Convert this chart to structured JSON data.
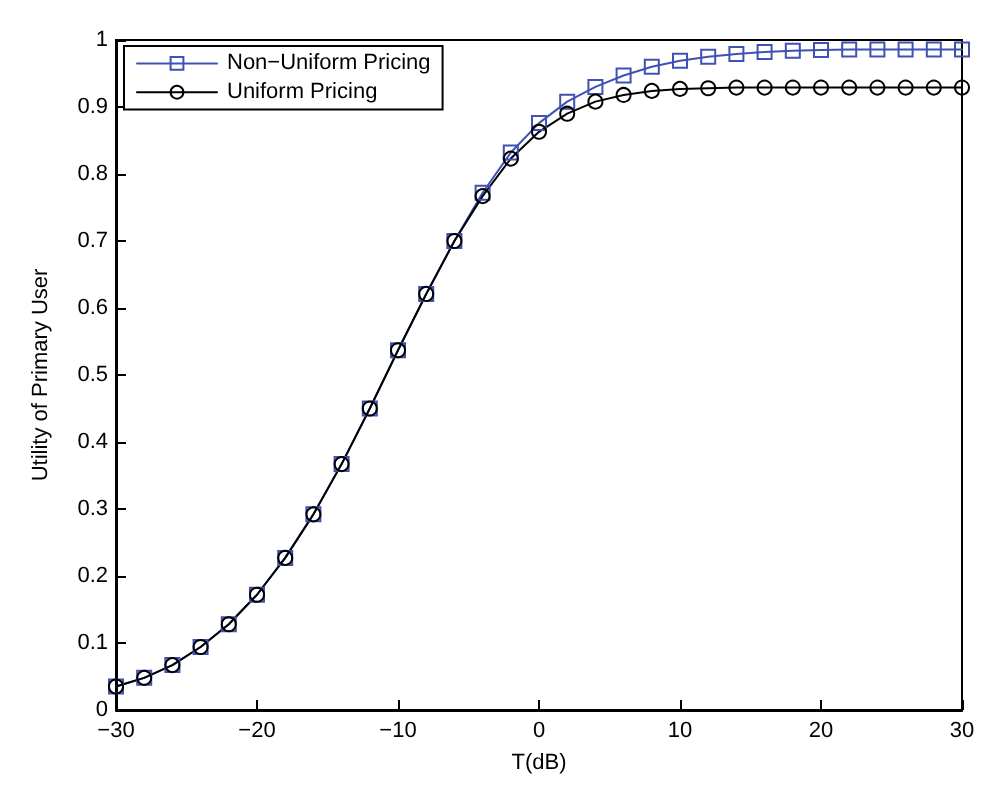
{
  "chart_data": {
    "type": "line",
    "xlabel": "T(dB)",
    "ylabel": "Utility of Primary User",
    "x": [
      -30,
      -28,
      -26,
      -24,
      -22,
      -20,
      -18,
      -16,
      -14,
      -12,
      -10,
      -8,
      -6,
      -4,
      -2,
      0,
      2,
      4,
      6,
      8,
      10,
      12,
      14,
      16,
      18,
      20,
      22,
      24,
      26,
      28,
      30
    ],
    "series": [
      {
        "name": "Non−Uniform Pricing",
        "color": "#3f51b5",
        "marker": "square",
        "values": [
          0.035,
          0.048,
          0.067,
          0.094,
          0.128,
          0.172,
          0.227,
          0.292,
          0.367,
          0.45,
          0.537,
          0.621,
          0.7,
          0.772,
          0.832,
          0.876,
          0.908,
          0.93,
          0.947,
          0.96,
          0.969,
          0.975,
          0.979,
          0.982,
          0.984,
          0.985,
          0.986,
          0.986,
          0.986,
          0.986,
          0.986
        ]
      },
      {
        "name": "Uniform Pricing",
        "color": "#000000",
        "marker": "circle",
        "values": [
          0.035,
          0.048,
          0.067,
          0.094,
          0.128,
          0.172,
          0.227,
          0.292,
          0.367,
          0.45,
          0.537,
          0.621,
          0.7,
          0.767,
          0.823,
          0.863,
          0.89,
          0.908,
          0.918,
          0.924,
          0.927,
          0.928,
          0.929,
          0.929,
          0.929,
          0.929,
          0.929,
          0.929,
          0.929,
          0.929,
          0.929
        ]
      }
    ],
    "xlim": [
      -30,
      30
    ],
    "xticks": [
      -30,
      -20,
      -10,
      0,
      10,
      20,
      30
    ],
    "ylim": [
      0,
      1
    ],
    "yticks": [
      0,
      0.1,
      0.2,
      0.3,
      0.4,
      0.5,
      0.6,
      0.7,
      0.8,
      0.9,
      1
    ],
    "grid": false,
    "legend": "top left",
    "line_style": "solid"
  }
}
